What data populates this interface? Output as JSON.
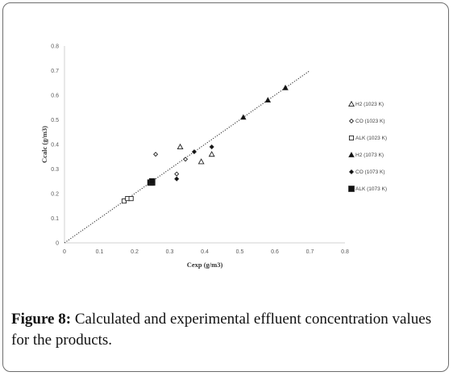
{
  "caption": {
    "label": "Figure 8:",
    "text": " Calculated and experimental effluent concentration values for the products."
  },
  "chart_data": {
    "type": "scatter",
    "xlabel": "Cexp (g/m3)",
    "ylabel": "Ccalc (g/m3)",
    "xlim": [
      0,
      0.8
    ],
    "ylim": [
      0,
      0.8
    ],
    "x_ticks": [
      "0",
      "0.1",
      "0.2",
      "0.3",
      "0.4",
      "0.5",
      "0.6",
      "0.7",
      "0.8"
    ],
    "y_ticks": [
      "0",
      "0.1",
      "0.2",
      "0.3",
      "0.4",
      "0.5",
      "0.6",
      "0.7",
      "0.8"
    ],
    "grid": false,
    "legend_position": "right",
    "parity_line": {
      "from": [
        0,
        0
      ],
      "to": [
        0.7,
        0.7
      ]
    },
    "series": [
      {
        "name": "H2 (1023 K)",
        "marker": "triangle-open",
        "points": [
          [
            0.33,
            0.39
          ],
          [
            0.39,
            0.33
          ],
          [
            0.42,
            0.36
          ]
        ]
      },
      {
        "name": "CO (1023 K)",
        "marker": "diamond-open",
        "points": [
          [
            0.26,
            0.36
          ],
          [
            0.32,
            0.28
          ],
          [
            0.345,
            0.34
          ]
        ]
      },
      {
        "name": "ALK (1023 K)",
        "marker": "square-open",
        "points": [
          [
            0.17,
            0.17
          ],
          [
            0.18,
            0.18
          ],
          [
            0.19,
            0.18
          ]
        ]
      },
      {
        "name": "H2 (1073 K)",
        "marker": "triangle-filled",
        "points": [
          [
            0.51,
            0.51
          ],
          [
            0.58,
            0.58
          ],
          [
            0.63,
            0.63
          ]
        ]
      },
      {
        "name": "CO (1073 K)",
        "marker": "diamond-filled",
        "points": [
          [
            0.32,
            0.26
          ],
          [
            0.37,
            0.37
          ],
          [
            0.42,
            0.39
          ]
        ]
      },
      {
        "name": "ALK (1073 K)",
        "marker": "square-filled",
        "points": [
          [
            0.245,
            0.245
          ],
          [
            0.25,
            0.245
          ],
          [
            0.25,
            0.25
          ]
        ]
      }
    ]
  }
}
